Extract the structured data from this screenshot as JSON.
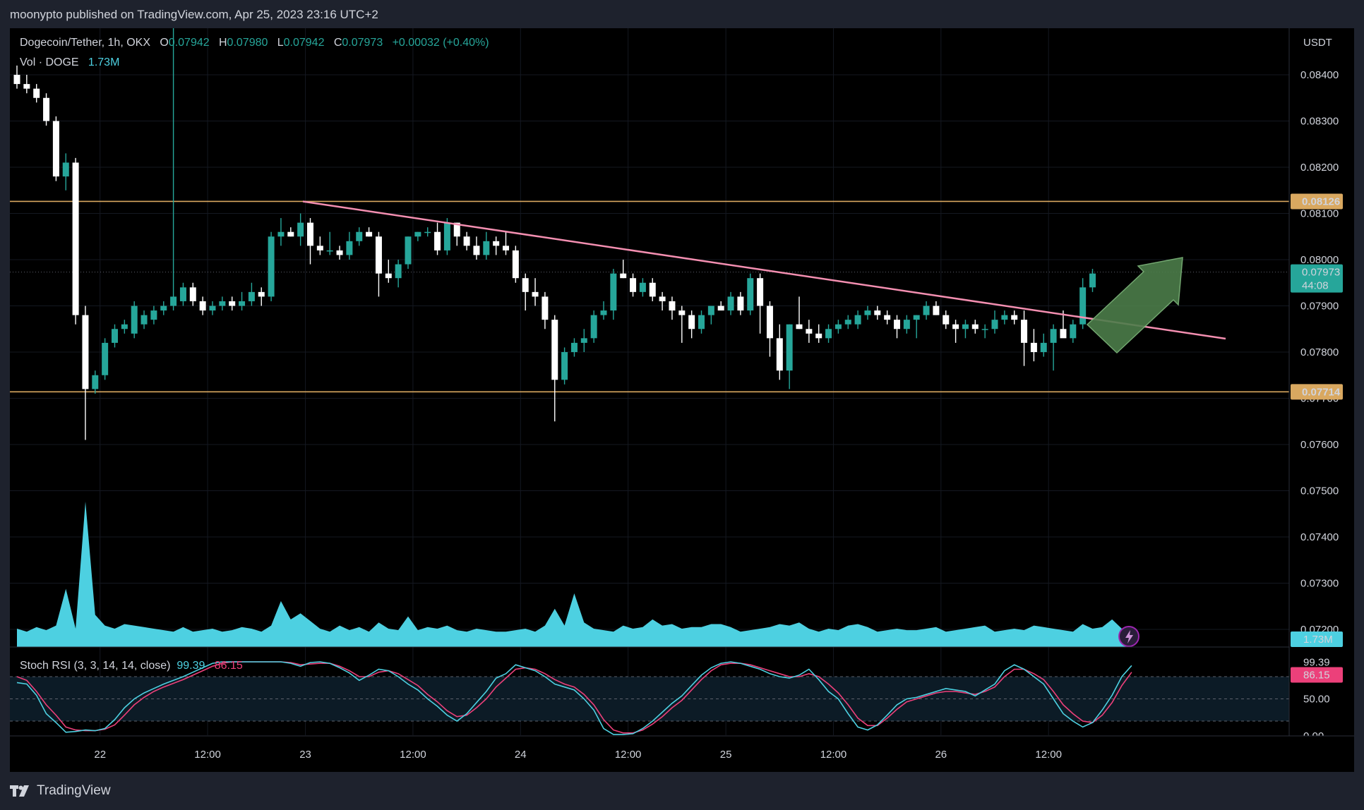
{
  "header": {
    "published": "moonypto published on TradingView.com, Apr 25, 2023 23:16 UTC+2"
  },
  "legend": {
    "symbol": "Dogecoin/Tether, 1h, OKX",
    "open_label": "O",
    "open": "0.07942",
    "high_label": "H",
    "high": "0.07980",
    "low_label": "L",
    "low": "0.07942",
    "close_label": "C",
    "close": "0.07973",
    "change": "+0.00032 (+0.40%)",
    "vol_label": "Vol · DOGE",
    "vol": "1.73M",
    "stoch_label": "Stoch RSI (3, 3, 14, 14, close)",
    "stoch_k": "99.39",
    "stoch_d": "86.15"
  },
  "price_axis": {
    "unit": "USDT",
    "ticks": [
      "0.08400",
      "0.08300",
      "0.08200",
      "0.08100",
      "0.08000",
      "0.07900",
      "0.07800",
      "0.07700",
      "0.07600",
      "0.07500",
      "0.07400",
      "0.07300",
      "0.07200"
    ],
    "resistance_label": "0.08126",
    "support_label": "0.07714",
    "last_price_label": "0.07973",
    "countdown": "44:08",
    "volume_label": "1.73M"
  },
  "rsi_axis": {
    "ticks": [
      "50.00",
      "0.00"
    ],
    "k_label": "99.39",
    "d_label": "86.15"
  },
  "time_axis": {
    "labels": [
      "22",
      "12:00",
      "23",
      "12:00",
      "24",
      "12:00",
      "25",
      "12:00",
      "26",
      "12:00"
    ]
  },
  "brand": {
    "name": "TradingView"
  },
  "colors": {
    "up": "#26a69a",
    "down": "#ffffff",
    "trend": "#f48fb1",
    "level": "#d9a860",
    "volume": "#4dd0e1",
    "stoch_k": "#4dd0e1",
    "stoch_d": "#ec407a",
    "arrow": "#4c7d4a"
  },
  "chart_data": {
    "type": "candlestick",
    "title": "Dogecoin/Tether, 1h, OKX",
    "ylabel": "USDT",
    "ylim": [
      0.0717,
      0.0845
    ],
    "horizontal_levels": [
      0.08126,
      0.07714
    ],
    "trendline": {
      "from_bar": 28,
      "from_price": 0.08126,
      "to_bar": 115,
      "to_price": 0.07829
    },
    "last_price": 0.07973,
    "candles": [
      {
        "o": 0.084,
        "h": 0.0842,
        "l": 0.0837,
        "c": 0.0838
      },
      {
        "o": 0.0838,
        "h": 0.084,
        "l": 0.0836,
        "c": 0.0837
      },
      {
        "o": 0.0837,
        "h": 0.0838,
        "l": 0.0834,
        "c": 0.0835
      },
      {
        "o": 0.0835,
        "h": 0.0836,
        "l": 0.0829,
        "c": 0.083
      },
      {
        "o": 0.083,
        "h": 0.0831,
        "l": 0.0817,
        "c": 0.0818
      },
      {
        "o": 0.0818,
        "h": 0.0823,
        "l": 0.0815,
        "c": 0.0821
      },
      {
        "o": 0.0821,
        "h": 0.0822,
        "l": 0.0786,
        "c": 0.0788
      },
      {
        "o": 0.0788,
        "h": 0.079,
        "l": 0.0761,
        "c": 0.0772
      },
      {
        "o": 0.0772,
        "h": 0.0776,
        "l": 0.0771,
        "c": 0.0775
      },
      {
        "o": 0.0775,
        "h": 0.0783,
        "l": 0.0774,
        "c": 0.0782
      },
      {
        "o": 0.0782,
        "h": 0.0786,
        "l": 0.0781,
        "c": 0.0785
      },
      {
        "o": 0.0785,
        "h": 0.0787,
        "l": 0.0784,
        "c": 0.0786
      },
      {
        "o": 0.0784,
        "h": 0.0791,
        "l": 0.0783,
        "c": 0.079
      },
      {
        "o": 0.0786,
        "h": 0.0789,
        "l": 0.0785,
        "c": 0.0788
      },
      {
        "o": 0.0787,
        "h": 0.079,
        "l": 0.0786,
        "c": 0.0789
      },
      {
        "o": 0.0789,
        "h": 0.0791,
        "l": 0.0788,
        "c": 0.079
      },
      {
        "o": 0.079,
        "h": 0.0893,
        "l": 0.0789,
        "c": 0.0792
      },
      {
        "o": 0.0791,
        "h": 0.0795,
        "l": 0.079,
        "c": 0.0794
      },
      {
        "o": 0.0794,
        "h": 0.0795,
        "l": 0.079,
        "c": 0.0791
      },
      {
        "o": 0.0791,
        "h": 0.0792,
        "l": 0.0788,
        "c": 0.0789
      },
      {
        "o": 0.0789,
        "h": 0.0791,
        "l": 0.0788,
        "c": 0.079
      },
      {
        "o": 0.079,
        "h": 0.0792,
        "l": 0.0789,
        "c": 0.0791
      },
      {
        "o": 0.0791,
        "h": 0.0792,
        "l": 0.0789,
        "c": 0.079
      },
      {
        "o": 0.079,
        "h": 0.0793,
        "l": 0.0789,
        "c": 0.0791
      },
      {
        "o": 0.0791,
        "h": 0.0795,
        "l": 0.079,
        "c": 0.0793
      },
      {
        "o": 0.0793,
        "h": 0.0794,
        "l": 0.079,
        "c": 0.0792
      },
      {
        "o": 0.0792,
        "h": 0.0806,
        "l": 0.0791,
        "c": 0.0805
      },
      {
        "o": 0.0805,
        "h": 0.0809,
        "l": 0.0803,
        "c": 0.0806
      },
      {
        "o": 0.0806,
        "h": 0.0807,
        "l": 0.0805,
        "c": 0.0805
      },
      {
        "o": 0.0805,
        "h": 0.081,
        "l": 0.0803,
        "c": 0.0808
      },
      {
        "o": 0.0808,
        "h": 0.0809,
        "l": 0.0799,
        "c": 0.0803
      },
      {
        "o": 0.0803,
        "h": 0.0805,
        "l": 0.0801,
        "c": 0.0802
      },
      {
        "o": 0.0802,
        "h": 0.0806,
        "l": 0.0801,
        "c": 0.0802
      },
      {
        "o": 0.0802,
        "h": 0.0803,
        "l": 0.08,
        "c": 0.0801
      },
      {
        "o": 0.0801,
        "h": 0.0806,
        "l": 0.08,
        "c": 0.0804
      },
      {
        "o": 0.0804,
        "h": 0.0807,
        "l": 0.0803,
        "c": 0.0806
      },
      {
        "o": 0.0806,
        "h": 0.0807,
        "l": 0.0805,
        "c": 0.0805
      },
      {
        "o": 0.0805,
        "h": 0.0806,
        "l": 0.0792,
        "c": 0.0797
      },
      {
        "o": 0.0797,
        "h": 0.08,
        "l": 0.0795,
        "c": 0.0796
      },
      {
        "o": 0.0796,
        "h": 0.08,
        "l": 0.0794,
        "c": 0.0799
      },
      {
        "o": 0.0799,
        "h": 0.0805,
        "l": 0.0798,
        "c": 0.0805
      },
      {
        "o": 0.0805,
        "h": 0.0806,
        "l": 0.0804,
        "c": 0.0806
      },
      {
        "o": 0.0806,
        "h": 0.0807,
        "l": 0.0805,
        "c": 0.0806
      },
      {
        "o": 0.0806,
        "h": 0.0808,
        "l": 0.0801,
        "c": 0.0802
      },
      {
        "o": 0.0802,
        "h": 0.0809,
        "l": 0.0801,
        "c": 0.0808
      },
      {
        "o": 0.0808,
        "h": 0.0808,
        "l": 0.0803,
        "c": 0.0805
      },
      {
        "o": 0.0805,
        "h": 0.0806,
        "l": 0.0802,
        "c": 0.0803
      },
      {
        "o": 0.0803,
        "h": 0.0805,
        "l": 0.08,
        "c": 0.0801
      },
      {
        "o": 0.0801,
        "h": 0.0806,
        "l": 0.08,
        "c": 0.0804
      },
      {
        "o": 0.0804,
        "h": 0.0805,
        "l": 0.0801,
        "c": 0.0803
      },
      {
        "o": 0.0803,
        "h": 0.0806,
        "l": 0.0801,
        "c": 0.0802
      },
      {
        "o": 0.0802,
        "h": 0.0803,
        "l": 0.0795,
        "c": 0.0796
      },
      {
        "o": 0.0796,
        "h": 0.0797,
        "l": 0.0789,
        "c": 0.0793
      },
      {
        "o": 0.0793,
        "h": 0.0796,
        "l": 0.079,
        "c": 0.0792
      },
      {
        "o": 0.0792,
        "h": 0.0793,
        "l": 0.0785,
        "c": 0.0787
      },
      {
        "o": 0.0787,
        "h": 0.0788,
        "l": 0.0765,
        "c": 0.0774
      },
      {
        "o": 0.0774,
        "h": 0.0781,
        "l": 0.0773,
        "c": 0.078
      },
      {
        "o": 0.078,
        "h": 0.0783,
        "l": 0.0779,
        "c": 0.0782
      },
      {
        "o": 0.0782,
        "h": 0.0785,
        "l": 0.078,
        "c": 0.0783
      },
      {
        "o": 0.0783,
        "h": 0.0789,
        "l": 0.0782,
        "c": 0.0788
      },
      {
        "o": 0.0788,
        "h": 0.0791,
        "l": 0.0787,
        "c": 0.0789
      },
      {
        "o": 0.0789,
        "h": 0.0798,
        "l": 0.0787,
        "c": 0.0797
      },
      {
        "o": 0.0797,
        "h": 0.08,
        "l": 0.0796,
        "c": 0.0796
      },
      {
        "o": 0.0796,
        "h": 0.0797,
        "l": 0.0792,
        "c": 0.0793
      },
      {
        "o": 0.0793,
        "h": 0.0796,
        "l": 0.0792,
        "c": 0.0795
      },
      {
        "o": 0.0795,
        "h": 0.0796,
        "l": 0.0791,
        "c": 0.0792
      },
      {
        "o": 0.0792,
        "h": 0.0793,
        "l": 0.0789,
        "c": 0.0791
      },
      {
        "o": 0.0791,
        "h": 0.0792,
        "l": 0.0787,
        "c": 0.0789
      },
      {
        "o": 0.0789,
        "h": 0.079,
        "l": 0.0782,
        "c": 0.0788
      },
      {
        "o": 0.0788,
        "h": 0.0789,
        "l": 0.0783,
        "c": 0.0785
      },
      {
        "o": 0.0785,
        "h": 0.0789,
        "l": 0.0784,
        "c": 0.0788
      },
      {
        "o": 0.0788,
        "h": 0.079,
        "l": 0.0786,
        "c": 0.079
      },
      {
        "o": 0.079,
        "h": 0.0791,
        "l": 0.0789,
        "c": 0.0789
      },
      {
        "o": 0.0789,
        "h": 0.0793,
        "l": 0.0788,
        "c": 0.0792
      },
      {
        "o": 0.0792,
        "h": 0.0793,
        "l": 0.0788,
        "c": 0.0789
      },
      {
        "o": 0.0789,
        "h": 0.0797,
        "l": 0.0788,
        "c": 0.0796
      },
      {
        "o": 0.0796,
        "h": 0.0797,
        "l": 0.0784,
        "c": 0.079
      },
      {
        "o": 0.079,
        "h": 0.0791,
        "l": 0.0779,
        "c": 0.0783
      },
      {
        "o": 0.0783,
        "h": 0.0786,
        "l": 0.0774,
        "c": 0.0776
      },
      {
        "o": 0.0776,
        "h": 0.0786,
        "l": 0.0772,
        "c": 0.0786
      },
      {
        "o": 0.0786,
        "h": 0.0792,
        "l": 0.0785,
        "c": 0.0785
      },
      {
        "o": 0.0785,
        "h": 0.0787,
        "l": 0.0782,
        "c": 0.0784
      },
      {
        "o": 0.0784,
        "h": 0.0786,
        "l": 0.0782,
        "c": 0.0783
      },
      {
        "o": 0.0783,
        "h": 0.0786,
        "l": 0.0782,
        "c": 0.0785
      },
      {
        "o": 0.0785,
        "h": 0.0787,
        "l": 0.0784,
        "c": 0.0786
      },
      {
        "o": 0.0786,
        "h": 0.0788,
        "l": 0.0785,
        "c": 0.0787
      },
      {
        "o": 0.0786,
        "h": 0.0789,
        "l": 0.0785,
        "c": 0.0788
      },
      {
        "o": 0.0788,
        "h": 0.079,
        "l": 0.0787,
        "c": 0.0789
      },
      {
        "o": 0.0789,
        "h": 0.079,
        "l": 0.0787,
        "c": 0.0788
      },
      {
        "o": 0.0788,
        "h": 0.0789,
        "l": 0.0786,
        "c": 0.0787
      },
      {
        "o": 0.0787,
        "h": 0.0788,
        "l": 0.0783,
        "c": 0.0785
      },
      {
        "o": 0.0785,
        "h": 0.0788,
        "l": 0.0784,
        "c": 0.0787
      },
      {
        "o": 0.0787,
        "h": 0.0788,
        "l": 0.0783,
        "c": 0.0788
      },
      {
        "o": 0.0788,
        "h": 0.0791,
        "l": 0.0787,
        "c": 0.079
      },
      {
        "o": 0.079,
        "h": 0.0791,
        "l": 0.0788,
        "c": 0.0788
      },
      {
        "o": 0.0788,
        "h": 0.0789,
        "l": 0.0785,
        "c": 0.0786
      },
      {
        "o": 0.0786,
        "h": 0.0787,
        "l": 0.0782,
        "c": 0.0785
      },
      {
        "o": 0.0785,
        "h": 0.0787,
        "l": 0.0783,
        "c": 0.0786
      },
      {
        "o": 0.0786,
        "h": 0.0787,
        "l": 0.0784,
        "c": 0.0785
      },
      {
        "o": 0.0785,
        "h": 0.0786,
        "l": 0.0783,
        "c": 0.0785
      },
      {
        "o": 0.0785,
        "h": 0.0789,
        "l": 0.0784,
        "c": 0.0787
      },
      {
        "o": 0.0787,
        "h": 0.0789,
        "l": 0.0786,
        "c": 0.0788
      },
      {
        "o": 0.0788,
        "h": 0.0789,
        "l": 0.0786,
        "c": 0.0787
      },
      {
        "o": 0.0787,
        "h": 0.0789,
        "l": 0.0777,
        "c": 0.0782
      },
      {
        "o": 0.0782,
        "h": 0.0785,
        "l": 0.0778,
        "c": 0.078
      },
      {
        "o": 0.078,
        "h": 0.0784,
        "l": 0.0779,
        "c": 0.0782
      },
      {
        "o": 0.0782,
        "h": 0.0786,
        "l": 0.0776,
        "c": 0.0785
      },
      {
        "o": 0.0785,
        "h": 0.0789,
        "l": 0.0784,
        "c": 0.0783
      },
      {
        "o": 0.0783,
        "h": 0.0787,
        "l": 0.0782,
        "c": 0.0786
      },
      {
        "o": 0.0786,
        "h": 0.0796,
        "l": 0.0785,
        "c": 0.0794
      },
      {
        "o": 0.0794,
        "h": 0.0798,
        "l": 0.0793,
        "c": 0.0797
      }
    ],
    "volume_series_name": "Vol · DOGE",
    "volume": [
      1.2,
      1.0,
      1.3,
      1.1,
      1.4,
      3.8,
      1.2,
      9.5,
      2.1,
      1.4,
      1.2,
      1.5,
      1.4,
      1.3,
      1.2,
      1.1,
      1.0,
      1.3,
      1.0,
      1.1,
      1.2,
      1.0,
      1.1,
      1.3,
      1.2,
      1.0,
      1.4,
      3.0,
      1.8,
      2.2,
      1.7,
      1.2,
      1.0,
      1.4,
      1.1,
      1.3,
      1.0,
      1.6,
      1.2,
      1.1,
      2.0,
      1.1,
      1.3,
      1.2,
      1.4,
      1.1,
      1.0,
      1.2,
      1.1,
      1.0,
      1.0,
      1.1,
      1.2,
      1.0,
      1.4,
      2.5,
      1.4,
      3.5,
      1.6,
      1.2,
      1.1,
      1.0,
      1.4,
      1.2,
      1.3,
      1.8,
      1.4,
      1.5,
      1.2,
      1.3,
      1.3,
      1.5,
      1.5,
      1.3,
      1.0,
      1.1,
      1.2,
      1.3,
      1.5,
      1.4,
      1.6,
      1.2,
      1.0,
      1.2,
      1.1,
      1.4,
      1.5,
      1.3,
      1.0,
      1.1,
      1.2,
      1.1,
      1.1,
      1.2,
      1.3,
      1.0,
      1.1,
      1.2,
      1.3,
      1.4,
      1.0,
      1.1,
      1.2,
      1.1,
      1.4,
      1.3,
      1.2,
      1.1,
      1.0,
      1.5,
      1.2,
      1.3,
      1.8,
      1.2,
      1.0
    ],
    "volume_ylim": [
      0,
      10
    ],
    "stoch_rsi": {
      "ylim": [
        0,
        100
      ],
      "band_lines": [
        80,
        50,
        20
      ],
      "k_name": "K",
      "d_name": "D",
      "k": [
        72,
        70,
        55,
        30,
        18,
        5,
        6,
        8,
        7,
        10,
        22,
        38,
        50,
        58,
        64,
        70,
        75,
        80,
        86,
        92,
        98,
        100,
        100,
        100,
        100,
        100,
        100,
        100,
        98,
        94,
        99,
        100,
        98,
        92,
        85,
        75,
        82,
        90,
        88,
        80,
        70,
        62,
        50,
        40,
        28,
        20,
        30,
        45,
        60,
        78,
        84,
        96,
        92,
        88,
        80,
        70,
        66,
        62,
        50,
        35,
        10,
        2,
        2,
        3,
        10,
        20,
        32,
        44,
        54,
        68,
        82,
        92,
        98,
        100,
        98,
        94,
        90,
        84,
        80,
        78,
        82,
        90,
        76,
        60,
        50,
        30,
        12,
        8,
        15,
        28,
        42,
        50,
        52,
        56,
        60,
        64,
        62,
        60,
        54,
        62,
        70,
        88,
        96,
        90,
        80,
        70,
        50,
        30,
        20,
        12,
        18,
        35,
        55,
        80,
        95
      ],
      "d": [
        80,
        75,
        60,
        42,
        28,
        12,
        8,
        7,
        7,
        9,
        15,
        28,
        42,
        52,
        60,
        66,
        71,
        76,
        82,
        88,
        94,
        98,
        100,
        100,
        100,
        100,
        100,
        100,
        99,
        96,
        97,
        98,
        98,
        94,
        88,
        80,
        80,
        86,
        88,
        84,
        76,
        68,
        56,
        46,
        34,
        26,
        28,
        38,
        50,
        66,
        78,
        90,
        92,
        90,
        84,
        76,
        70,
        66,
        56,
        42,
        22,
        8,
        4,
        4,
        8,
        16,
        26,
        38,
        48,
        62,
        76,
        88,
        96,
        98,
        98,
        96,
        92,
        88,
        84,
        80,
        80,
        84,
        80,
        70,
        58,
        42,
        24,
        14,
        14,
        24,
        36,
        46,
        50,
        54,
        58,
        60,
        60,
        58,
        56,
        60,
        66,
        80,
        90,
        90,
        84,
        76,
        60,
        42,
        30,
        20,
        18,
        28,
        45,
        68,
        86
      ]
    },
    "x_tick_labels": [
      "22",
      "12:00",
      "23",
      "12:00",
      "24",
      "12:00",
      "25",
      "12:00",
      "26",
      "12:00"
    ]
  }
}
